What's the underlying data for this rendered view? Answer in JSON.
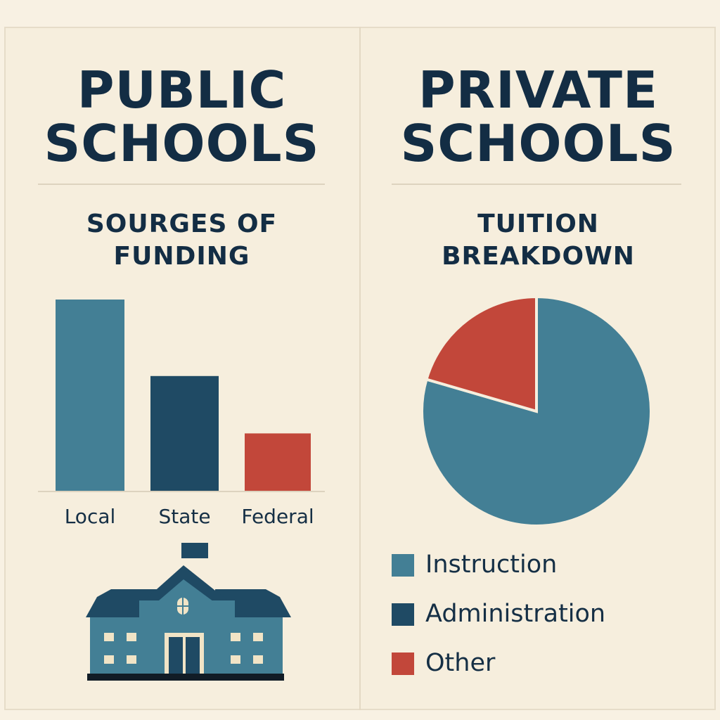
{
  "public": {
    "title_line1": "PUBLIC",
    "title_line2": "SCHOOLS",
    "subtitle_line1": "SOURGES OF",
    "subtitle_line2": "FUNDING"
  },
  "private": {
    "title_line1": "PRIVATE",
    "title_line2": "SCHOOLS",
    "subtitle_line1": "TUITION",
    "subtitle_line2": "BREAKDOWN"
  },
  "colors": {
    "background": "#f8f1e3",
    "teal": "#437f95",
    "navy": "#1f4a64",
    "red": "#c2473a",
    "text": "#132d44"
  },
  "chart_data": [
    {
      "type": "bar",
      "title": "SOURGES OF FUNDING",
      "categories": [
        "Local",
        "State",
        "Federal"
      ],
      "values": [
        100,
        60,
        30
      ],
      "colors": [
        "#437f95",
        "#1f4a64",
        "#c2473a"
      ],
      "ylim": [
        0,
        100
      ],
      "xlabel": "",
      "ylabel": "",
      "grid": false
    },
    {
      "type": "pie",
      "title": "TUITION BREAKDOWN",
      "labels": [
        "Instruction",
        "Administration",
        "Other"
      ],
      "values": [
        79.5,
        0,
        20.5
      ],
      "colors": [
        "#437f95",
        "#1f4a64",
        "#c2473a"
      ],
      "legend_position": "bottom"
    }
  ],
  "icons": {
    "school_building": "school-building-icon"
  }
}
